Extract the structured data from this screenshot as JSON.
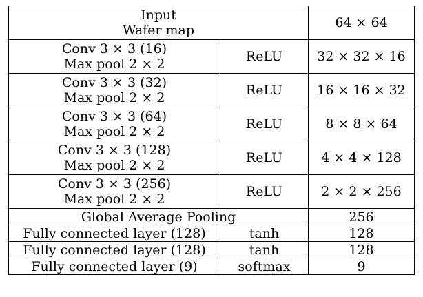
{
  "table": {
    "input": {
      "line1": "Input",
      "line2": "Wafer map",
      "output": "64 × 64"
    },
    "conv_blocks": [
      {
        "conv": "Conv 3 × 3 (16)",
        "pool": "Max pool 2 × 2",
        "activation": "ReLU",
        "output": "32 × 32 × 16"
      },
      {
        "conv": "Conv 3 × 3 (32)",
        "pool": "Max pool 2 × 2",
        "activation": "ReLU",
        "output": "16 × 16 × 32"
      },
      {
        "conv": "Conv 3 × 3 (64)",
        "pool": "Max pool 2 × 2",
        "activation": "ReLU",
        "output": "8 × 8 × 64"
      },
      {
        "conv": "Conv 3 × 3 (128)",
        "pool": "Max pool 2 × 2",
        "activation": "ReLU",
        "output": "4 × 4 × 128"
      },
      {
        "conv": "Conv 3 × 3 (256)",
        "pool": "Max pool 2 × 2",
        "activation": "ReLU",
        "output": "2 × 2 × 256"
      }
    ],
    "gap": {
      "layer": "Global Average Pooling",
      "output": "256"
    },
    "dense": [
      {
        "layer": "Fully connected layer (128)",
        "activation": "tanh",
        "output": "128"
      },
      {
        "layer": "Fully connected layer (128)",
        "activation": "tanh",
        "output": "128"
      },
      {
        "layer": "Fully connected layer (9)",
        "activation": "softmax",
        "output": "9"
      }
    ]
  }
}
